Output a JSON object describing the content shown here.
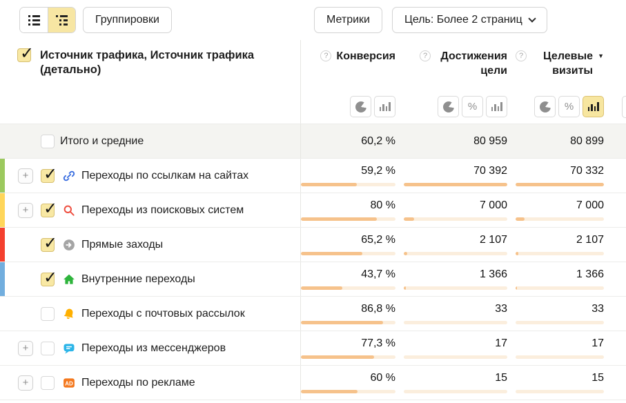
{
  "toolbar": {
    "view_toggle": {
      "options": [
        {
          "icon": "flat-list-icon",
          "selected": false
        },
        {
          "icon": "tree-list-icon",
          "selected": true
        }
      ]
    },
    "groupings_label": "Группировки",
    "metrics_label": "Метрики",
    "goal_label": "Цель: Более 2 страниц"
  },
  "table": {
    "dimension_header": "Источник трафика, Источник трафика (детально)",
    "dimension_checkbox_checked": true,
    "columns": [
      {
        "label": "Конверсия",
        "help_icon": "?",
        "sorted": false,
        "toggles": [
          {
            "type": "pie",
            "selected": false
          },
          {
            "type": "bars",
            "selected": false
          }
        ]
      },
      {
        "label": "Достижения цели",
        "help_icon": "?",
        "sorted": false,
        "toggles": [
          {
            "type": "pie",
            "selected": false
          },
          {
            "type": "percent",
            "selected": false
          },
          {
            "type": "bars",
            "selected": false
          }
        ]
      },
      {
        "label": "Целевые визиты",
        "help_icon": "?",
        "sorted": true,
        "sort_direction": "desc",
        "toggles": [
          {
            "type": "pie",
            "selected": false
          },
          {
            "type": "percent",
            "selected": false
          },
          {
            "type": "bars",
            "selected": true
          }
        ]
      }
    ],
    "rows": [
      {
        "label": "Итого и средние",
        "totals": true,
        "expandable": false,
        "checked": false,
        "icon": null,
        "stripe": null,
        "conversion": "60,2 %",
        "goal_reaches": "80 959",
        "target_visits": "80 899",
        "conversion_pct": null,
        "goal_reaches_pct": null,
        "target_visits_pct": null
      },
      {
        "label": "Переходы по ссылкам на сайтах",
        "totals": false,
        "expandable": true,
        "checked": true,
        "icon": "link-icon",
        "stripe": "#9cc95e",
        "conversion": "59,2 %",
        "goal_reaches": "70 392",
        "target_visits": "70 332",
        "conversion_pct": 59.2,
        "goal_reaches_pct": 100,
        "target_visits_pct": 100
      },
      {
        "label": "Переходы из поисковых систем",
        "totals": false,
        "expandable": true,
        "checked": true,
        "icon": "search-icon",
        "stripe": "#ffd65a",
        "conversion": "80 %",
        "goal_reaches": "7 000",
        "target_visits": "7 000",
        "conversion_pct": 80,
        "goal_reaches_pct": 9.9,
        "target_visits_pct": 10
      },
      {
        "label": "Прямые заходы",
        "totals": false,
        "expandable": false,
        "checked": true,
        "icon": "direct-arrow-icon",
        "stripe": "#f4402e",
        "conversion": "65,2 %",
        "goal_reaches": "2 107",
        "target_visits": "2 107",
        "conversion_pct": 65.2,
        "goal_reaches_pct": 3,
        "target_visits_pct": 3
      },
      {
        "label": "Внутренние переходы",
        "totals": false,
        "expandable": false,
        "checked": true,
        "icon": "home-icon",
        "stripe": "#72aede",
        "conversion": "43,7 %",
        "goal_reaches": "1 366",
        "target_visits": "1 366",
        "conversion_pct": 43.7,
        "goal_reaches_pct": 1.9,
        "target_visits_pct": 1.9
      },
      {
        "label": "Переходы с почтовых рассылок",
        "totals": false,
        "expandable": false,
        "checked": false,
        "icon": "bell-icon",
        "stripe": null,
        "conversion": "86,8 %",
        "goal_reaches": "33",
        "target_visits": "33",
        "conversion_pct": 86.8,
        "goal_reaches_pct": 0,
        "target_visits_pct": 0
      },
      {
        "label": "Переходы из мессенджеров",
        "totals": false,
        "expandable": true,
        "checked": false,
        "icon": "messenger-icon",
        "stripe": null,
        "conversion": "77,3 %",
        "goal_reaches": "17",
        "target_visits": "17",
        "conversion_pct": 77.3,
        "goal_reaches_pct": 0,
        "target_visits_pct": 0
      },
      {
        "label": "Переходы по рекламе",
        "totals": false,
        "expandable": true,
        "checked": false,
        "icon": "ad-icon",
        "stripe": null,
        "conversion": "60 %",
        "goal_reaches": "15",
        "target_visits": "15",
        "conversion_pct": 60,
        "goal_reaches_pct": 0,
        "target_visits_pct": 0
      }
    ]
  },
  "colors": {
    "accent_selected": "#f7e6a3",
    "bar_fill": "#f6c28b",
    "bar_track": "#fbeedd",
    "totals_row_bg": "#f4f4f1",
    "icons": {
      "link-icon": "#3b6fe0",
      "search-icon": "#ee4f40",
      "direct-arrow-icon": "#a5a5a5",
      "home-icon": "#2eb43c",
      "bell-icon": "#ffb000",
      "messenger-icon": "#2cb5e8",
      "ad-icon": "#f4791f"
    }
  }
}
